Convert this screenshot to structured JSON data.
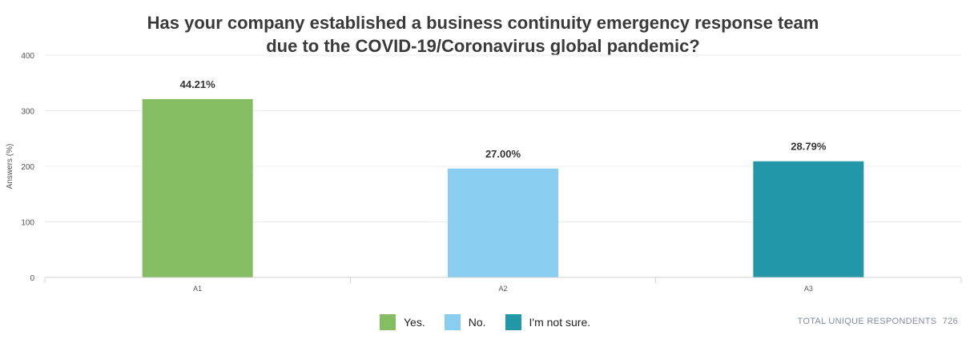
{
  "chart_data": {
    "type": "bar",
    "title_lines": [
      "Has your company established a business continuity emergency response team",
      "due to the COVID-19/Coronavirus global pandemic?"
    ],
    "ylabel": "Answers (%)",
    "ylim": [
      0,
      400
    ],
    "yticks": [
      0,
      100,
      200,
      300,
      400
    ],
    "categories": [
      "A1",
      "A2",
      "A3"
    ],
    "values": [
      321,
      196,
      209
    ],
    "data_labels": [
      "44.21%",
      "27.00%",
      "28.79%"
    ],
    "colors": [
      "#84bd62",
      "#89cdf1",
      "#2297a7"
    ],
    "legend": [
      "Yes.",
      "No.",
      "I'm not sure."
    ],
    "grid": true,
    "legend_position": "bottom"
  },
  "footer": {
    "label": "TOTAL UNIQUE RESPONDENTS",
    "count": "726"
  }
}
